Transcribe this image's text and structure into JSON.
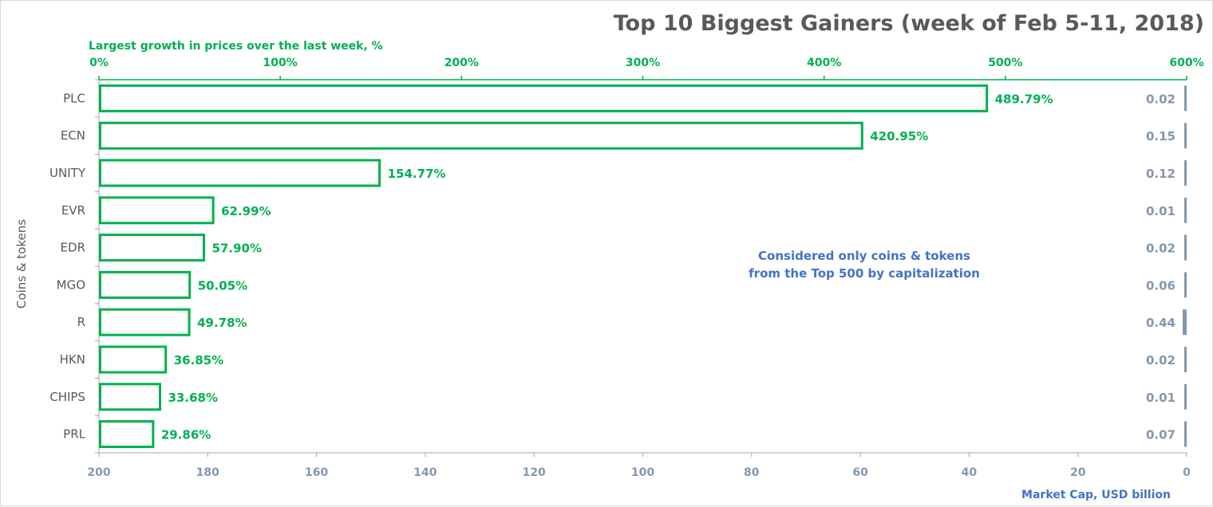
{
  "chart_data": {
    "type": "bar",
    "title": "Top 10 Biggest Gainers (week of Feb 5-11, 2018)",
    "ylabel": "Coins & tokens",
    "categories": [
      "PLC",
      "ECN",
      "UNITY",
      "EVR",
      "EDR",
      "MGO",
      "R",
      "HKN",
      "CHIPS",
      "PRL"
    ],
    "series": [
      {
        "name": "Largest growth in prices over the last week, %",
        "values": [
          489.79,
          420.95,
          154.77,
          62.99,
          57.9,
          50.05,
          49.78,
          36.85,
          33.68,
          29.86
        ],
        "labels": [
          "489.79%",
          "420.95%",
          "154.77%",
          "62.99%",
          "57.90%",
          "50.05%",
          "49.78%",
          "36.85%",
          "33.68%",
          "29.86%"
        ],
        "color": "#00b050",
        "axis": "top",
        "xlim": [
          0,
          600
        ],
        "ticks": [
          "0%",
          "100%",
          "200%",
          "300%",
          "400%",
          "500%",
          "600%"
        ],
        "tick_values": [
          0,
          100,
          200,
          300,
          400,
          500,
          600
        ]
      },
      {
        "name": "Market Cap,  USD billion",
        "values": [
          0.02,
          0.15,
          0.12,
          0.01,
          0.02,
          0.06,
          0.44,
          0.02,
          0.01,
          0.07
        ],
        "labels": [
          "0.02",
          "0.15",
          "0.12",
          "0.01",
          "0.02",
          "0.06",
          "0.44",
          "0.02",
          "0.01",
          "0.07"
        ],
        "color": "#8497b0",
        "axis": "bottom",
        "axis_reversed": true,
        "xlim": [
          0,
          200
        ],
        "ticks": [
          "200",
          "180",
          "160",
          "140",
          "120",
          "100",
          "80",
          "60",
          "40",
          "20",
          "0"
        ],
        "tick_values": [
          200,
          180,
          160,
          140,
          120,
          100,
          80,
          60,
          40,
          20,
          0
        ]
      }
    ],
    "annotation": [
      "Considered only coins & tokens",
      "from the Top 500 by capitalization"
    ],
    "grid": false,
    "legend": "none"
  }
}
